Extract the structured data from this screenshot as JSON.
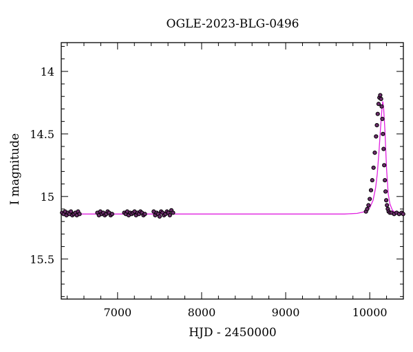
{
  "chart_data": {
    "type": "scatter",
    "title": "OGLE-2023-BLG-0496",
    "xlabel": "HJD - 2450000",
    "ylabel": "I magnitude",
    "xlim": [
      6330,
      10400
    ],
    "ylim": [
      15.82,
      13.77
    ],
    "y_inverted": true,
    "grid": false,
    "x_ticks": [
      7000,
      8000,
      9000,
      10000
    ],
    "x_tick_labels": [
      "7000",
      "8000",
      "9000",
      "10000"
    ],
    "y_ticks": [
      14,
      14.5,
      15,
      15.5
    ],
    "y_tick_labels": [
      "14",
      "14.5",
      "15",
      "15.5"
    ],
    "colors": {
      "points": "#000000",
      "point_fill": "#6a2c6a",
      "model": "#e020e0"
    },
    "baseline_mag": 15.14,
    "series": [
      {
        "kind": "points",
        "x": [
          6340,
          6358,
          6375,
          6392,
          6410,
          6428,
          6445,
          6462,
          6480,
          6498,
          6515,
          6530,
          6548,
          6760,
          6778,
          6795,
          6812,
          6830,
          6848,
          6865,
          6882,
          6900,
          6918,
          6935,
          7080,
          7098,
          7115,
          7132,
          7150,
          7168,
          7185,
          7202,
          7220,
          7238,
          7255,
          7272,
          7290,
          7308,
          7325,
          7430,
          7448,
          7465,
          7482,
          7500,
          7518,
          7535,
          7552,
          7570,
          7588,
          7605,
          7622,
          7640,
          7660,
          9955,
          9970,
          9985,
          10000,
          10015,
          10030,
          10045,
          10060,
          10075,
          10085,
          10095,
          10105,
          10115,
          10125,
          10135,
          10142,
          10150,
          10157,
          10165,
          10172,
          10180,
          10188,
          10196,
          10205,
          10215,
          10225,
          10240,
          10260,
          10290,
          10320,
          10350,
          10380,
          10398
        ],
        "y": [
          15.13,
          15.14,
          15.12,
          15.15,
          15.13,
          15.14,
          15.12,
          15.15,
          15.14,
          15.13,
          15.15,
          15.12,
          15.14,
          15.13,
          15.15,
          15.12,
          15.14,
          15.13,
          15.15,
          15.14,
          15.12,
          15.13,
          15.15,
          15.14,
          15.13,
          15.14,
          15.12,
          15.15,
          15.13,
          15.14,
          15.13,
          15.12,
          15.15,
          15.13,
          15.14,
          15.12,
          15.13,
          15.15,
          15.14,
          15.12,
          15.15,
          15.13,
          15.14,
          15.16,
          15.12,
          15.13,
          15.15,
          15.14,
          15.12,
          15.13,
          15.15,
          15.11,
          15.13,
          15.12,
          15.1,
          15.07,
          15.02,
          14.95,
          14.87,
          14.77,
          14.65,
          14.52,
          14.43,
          14.34,
          14.26,
          14.21,
          14.19,
          14.22,
          14.28,
          14.38,
          14.5,
          14.62,
          14.75,
          14.87,
          14.96,
          15.03,
          15.07,
          15.1,
          15.12,
          15.13,
          15.13,
          15.14,
          15.13,
          15.14,
          15.13,
          15.14
        ]
      },
      {
        "kind": "model",
        "x": [
          6330,
          7000,
          8000,
          9000,
          9700,
          9850,
          9950,
          10000,
          10040,
          10070,
          10090,
          10110,
          10130,
          10145,
          10155,
          10165,
          10180,
          10200,
          10220,
          10240,
          10270,
          10300,
          10350,
          10400
        ],
        "y": [
          15.14,
          15.14,
          15.14,
          15.14,
          15.14,
          15.135,
          15.12,
          15.09,
          15.03,
          14.93,
          14.82,
          14.64,
          14.44,
          14.3,
          14.24,
          14.29,
          14.46,
          14.78,
          14.98,
          15.06,
          15.11,
          15.125,
          15.135,
          15.14
        ]
      }
    ]
  }
}
